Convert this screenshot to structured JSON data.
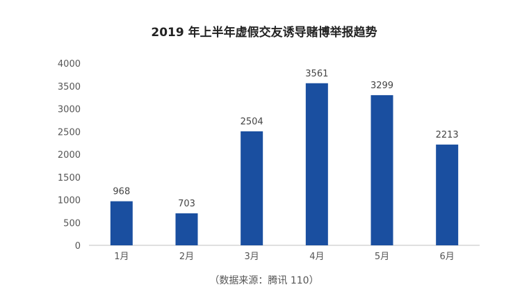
{
  "chart_data": {
    "type": "bar",
    "title": "2019 年上半年虚假交友诱导赌博举报趋势",
    "categories": [
      "1月",
      "2月",
      "3月",
      "4月",
      "5月",
      "6月"
    ],
    "values": [
      968,
      703,
      2504,
      3561,
      3299,
      2213
    ],
    "data_labels": [
      "968",
      "703",
      "2504",
      "3561",
      "3299",
      "2213"
    ],
    "yticks": [
      "0",
      "500",
      "1000",
      "1500",
      "2000",
      "2500",
      "3000",
      "3500",
      "4000"
    ],
    "ylim": [
      0,
      4000
    ],
    "grid": false,
    "legend": "none",
    "bar_color": "#1a4fa0"
  },
  "source_note": "（数据来源：腾讯 110）"
}
